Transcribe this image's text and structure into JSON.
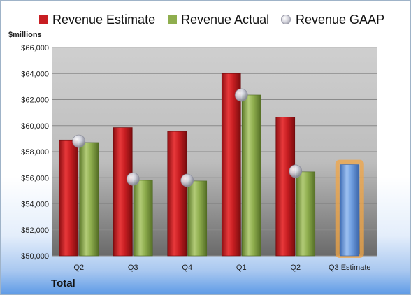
{
  "chart_data": {
    "type": "bar",
    "y_unit_label": "$millions",
    "x_group_label": "Total",
    "categories": [
      "Q2",
      "Q3",
      "Q4",
      "Q1",
      "Q2",
      "Q3 Estimate"
    ],
    "series": [
      {
        "name": "Revenue Estimate",
        "kind": "bar",
        "color": "#c81e22",
        "values": [
          58900,
          59850,
          59550,
          64000,
          60650,
          null
        ]
      },
      {
        "name": "Revenue Actual",
        "kind": "bar",
        "color": "#8fae4e",
        "values": [
          58700,
          55800,
          55750,
          62350,
          56450,
          null
        ]
      },
      {
        "name": "Revenue GAAP",
        "kind": "marker",
        "color": "#b8bac8",
        "values": [
          58800,
          55900,
          55800,
          62350,
          56500,
          null
        ]
      }
    ],
    "highlight_bar": {
      "category": "Q3 Estimate",
      "value": 57000,
      "color": "#6f9ee0",
      "glow": "#f2a646"
    },
    "ylim": [
      50000,
      66000
    ],
    "y_ticks": [
      "$50,000",
      "$52,000",
      "$54,000",
      "$56,000",
      "$58,000",
      "$60,000",
      "$62,000",
      "$64,000",
      "$66,000"
    ],
    "grid": true,
    "legend_position": "top"
  }
}
